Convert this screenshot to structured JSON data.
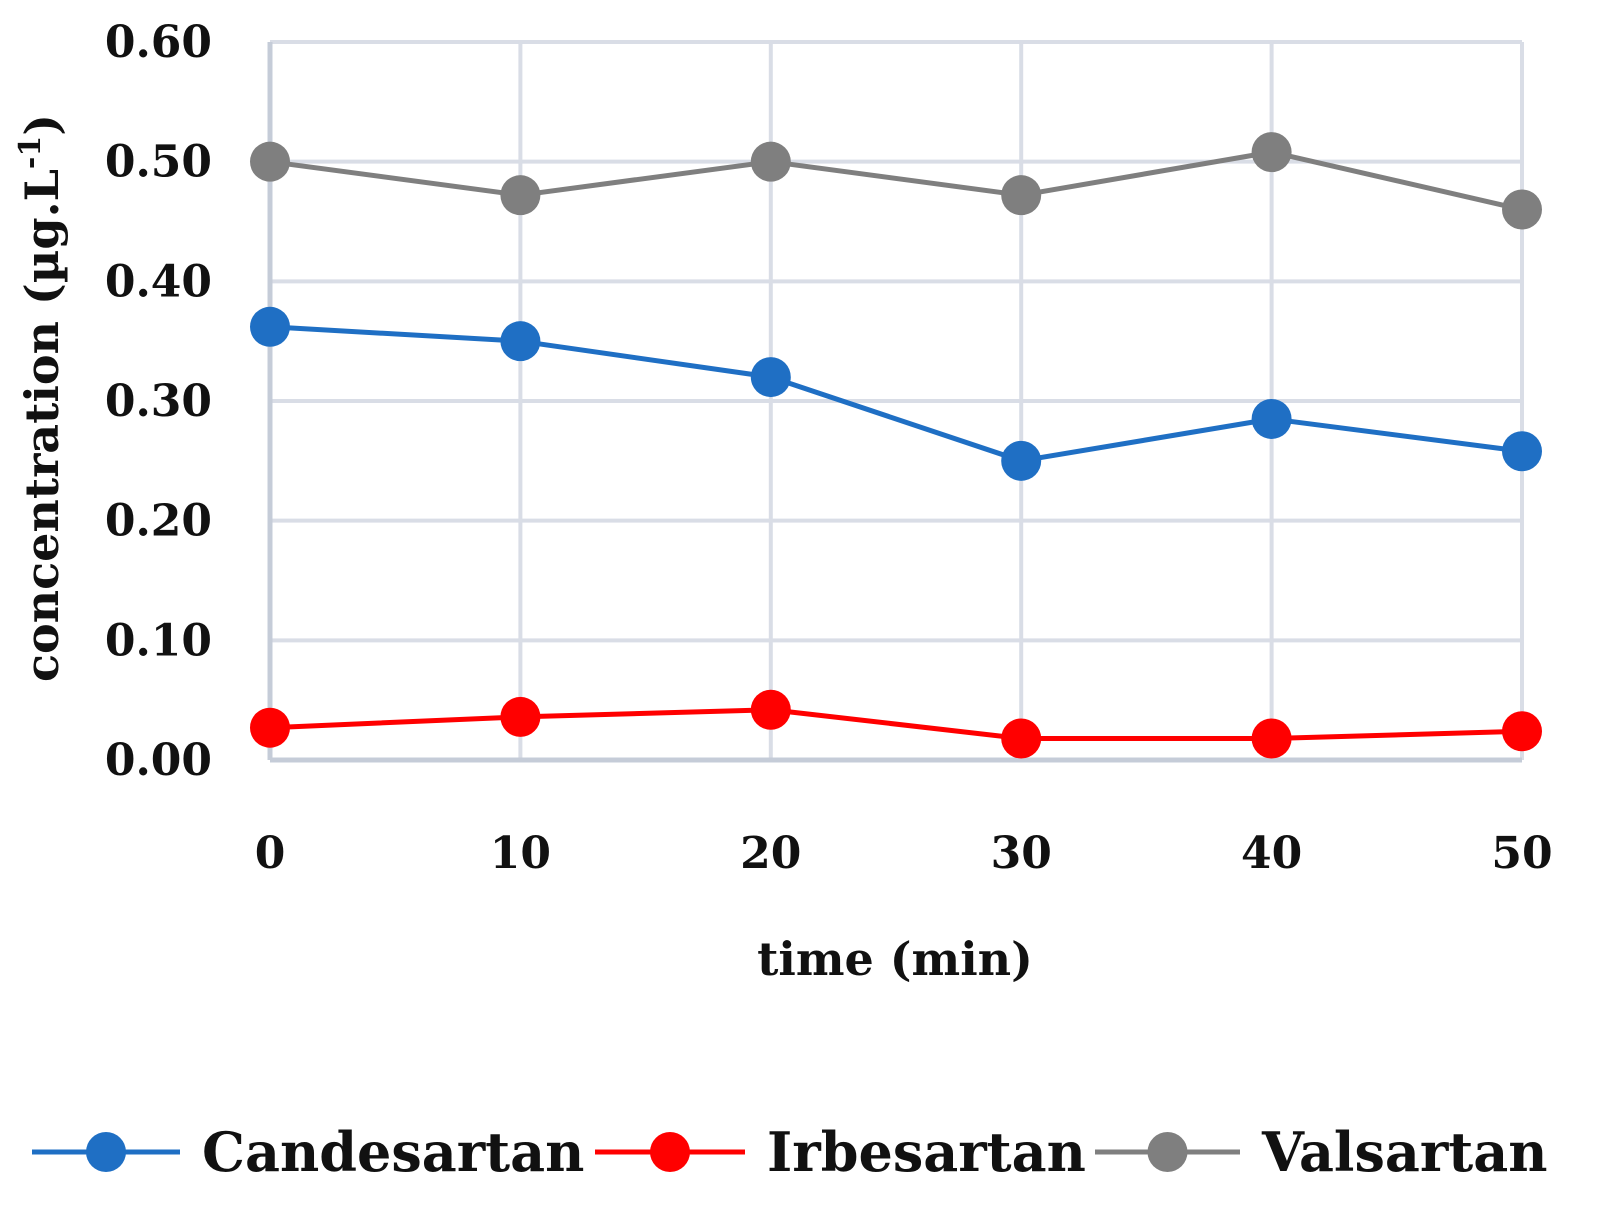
{
  "chart_data": {
    "type": "line",
    "title": "",
    "xlabel": "time (min)",
    "ylabel": "concentration (µg.L",
    "ylabel_sup": "-1",
    "ylabel_close": ")",
    "x": [
      0,
      10,
      20,
      30,
      40,
      50
    ],
    "x_tick_labels": [
      "0",
      "10",
      "20",
      "30",
      "40",
      "50"
    ],
    "y_tick_labels": [
      "0.00",
      "0.10",
      "0.20",
      "0.30",
      "0.40",
      "0.50",
      "0.60"
    ],
    "y_ticks": [
      0,
      0.1,
      0.2,
      0.3,
      0.4,
      0.5,
      0.6
    ],
    "xlim": [
      0,
      50
    ],
    "ylim": [
      0,
      0.6
    ],
    "grid": true,
    "legend_position": "bottom",
    "series": [
      {
        "name": "Candesartan",
        "color": "#1f6fc4",
        "values": [
          0.362,
          0.35,
          0.32,
          0.25,
          0.285,
          0.258
        ]
      },
      {
        "name": "Irbesartan",
        "color": "#ff0000",
        "values": [
          0.027,
          0.036,
          0.042,
          0.018,
          0.018,
          0.024
        ]
      },
      {
        "name": "Valsartan",
        "color": "#7f7f7f",
        "values": [
          0.5,
          0.472,
          0.5,
          0.472,
          0.508,
          0.46
        ]
      }
    ]
  }
}
